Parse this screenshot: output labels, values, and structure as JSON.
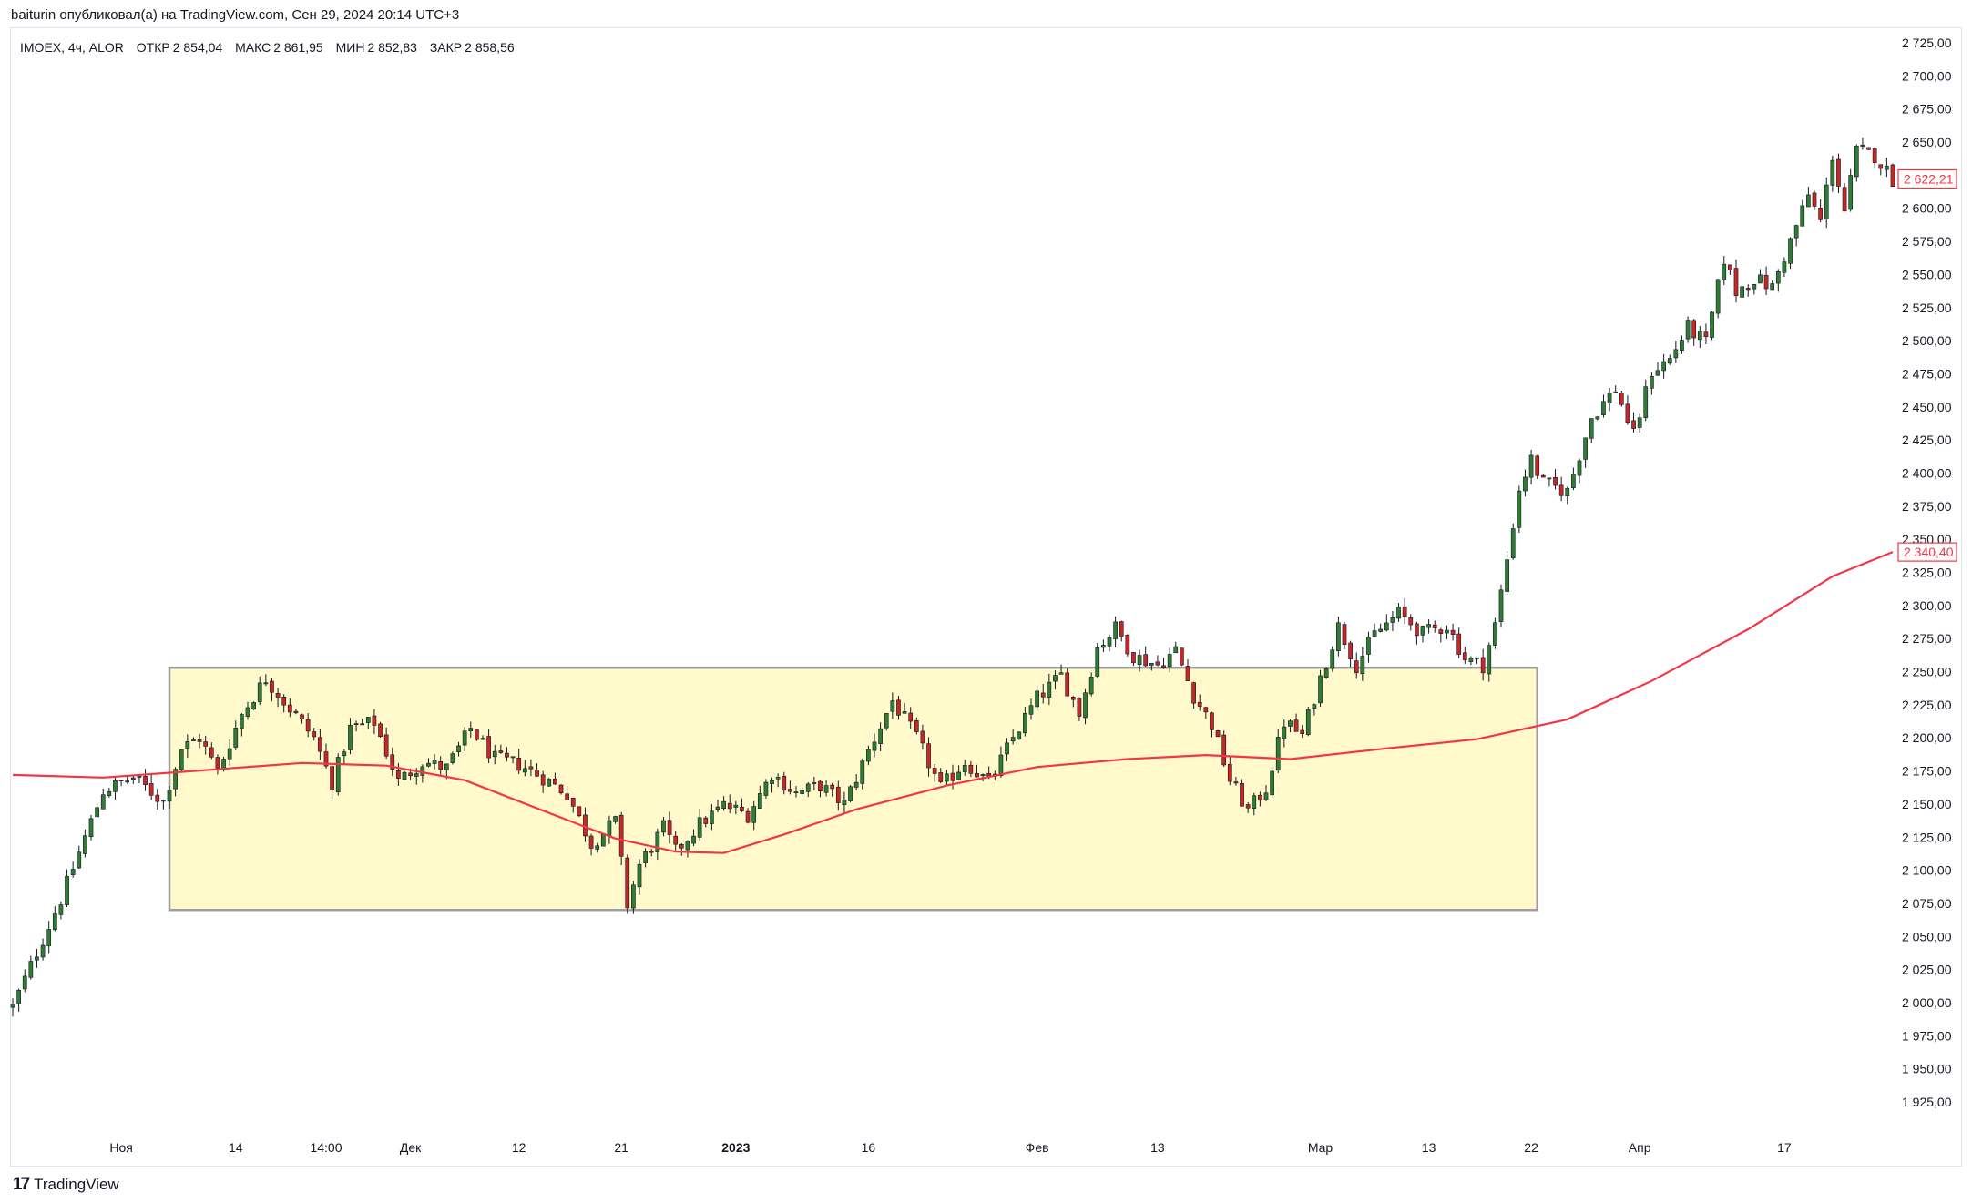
{
  "header": {
    "publish_text": "baiturin опубликовал(а) на TradingView.com, Сен 29, 2024 20:14 UTC+3"
  },
  "legend": {
    "symbol": "IMOEX, 4ч, ALOR",
    "open_label": "ОТКР",
    "open_value": "2 854,04",
    "high_label": "МАКС",
    "high_value": "2 861,95",
    "low_label": "МИН",
    "low_value": "2 852,83",
    "close_label": "ЗАКР",
    "close_value": "2 858,56"
  },
  "footer": {
    "brand": "TradingView",
    "logo_mark": "17"
  },
  "colors": {
    "up": "#26a69a",
    "up_body": "#2e7d32",
    "down": "#ef5350",
    "down_body": "#c62828",
    "ma": "#f23645",
    "range_fill": "#fff9cc",
    "range_border": "#9e9e9e",
    "grid_text": "#131722"
  },
  "chart_data": {
    "type": "candlestick",
    "title": "IMOEX, 4ч, ALOR",
    "ylim": [
      1900,
      2730
    ],
    "y_ticks": [
      1925,
      1950,
      1975,
      2000,
      2025,
      2050,
      2075,
      2100,
      2125,
      2150,
      2175,
      2200,
      2225,
      2250,
      2275,
      2300,
      2325,
      2350,
      2375,
      2400,
      2425,
      2450,
      2475,
      2500,
      2525,
      2550,
      2575,
      2600,
      2625,
      2650,
      2675,
      2700,
      2725
    ],
    "y_tick_labels": [
      "1 925,00",
      "1 950,00",
      "1 975,00",
      "2 000,00",
      "2 025,00",
      "2 050,00",
      "2 075,00",
      "2 100,00",
      "2 125,00",
      "2 150,00",
      "2 175,00",
      "2 200,00",
      "2 225,00",
      "2 250,00",
      "2 275,00",
      "2 300,00",
      "2 325,00",
      "2 350,00",
      "2 375,00",
      "2 400,00",
      "2 425,00",
      "2 450,00",
      "2 475,00",
      "2 500,00",
      "2 525,00",
      "2 550,00",
      "2 575,00",
      "2 600,00",
      "2 625,00",
      "2 650,00",
      "2 675,00",
      "2 700,00",
      "2 725,00"
    ],
    "x_ticks": [
      {
        "bar": 18,
        "label": "Ноя",
        "bold": false
      },
      {
        "bar": 37,
        "label": "14",
        "bold": false
      },
      {
        "bar": 52,
        "label": "14:00",
        "bold": false
      },
      {
        "bar": 66,
        "label": "Дек",
        "bold": false
      },
      {
        "bar": 84,
        "label": "12",
        "bold": false
      },
      {
        "bar": 101,
        "label": "21",
        "bold": false
      },
      {
        "bar": 120,
        "label": "2023",
        "bold": true
      },
      {
        "bar": 142,
        "label": "16",
        "bold": false
      },
      {
        "bar": 170,
        "label": "Фев",
        "bold": false
      },
      {
        "bar": 190,
        "label": "13",
        "bold": false
      },
      {
        "bar": 217,
        "label": "Мар",
        "bold": false
      },
      {
        "bar": 235,
        "label": "13",
        "bold": false
      },
      {
        "bar": 252,
        "label": "22",
        "bold": false
      },
      {
        "bar": 270,
        "label": "Апр",
        "bold": false
      },
      {
        "bar": 294,
        "label": "17",
        "bold": false
      }
    ],
    "price_labels": [
      {
        "name": "last-price",
        "value": 2622.21,
        "text": "2 622,21"
      },
      {
        "name": "ma-price",
        "value": 2340.4,
        "text": "2 340,40"
      }
    ],
    "range_box": {
      "price_top": 2253,
      "price_bottom": 2070,
      "bar_start": 26,
      "bar_end": 253
    },
    "ma_path": [
      {
        "bar": 0,
        "value": 2172
      },
      {
        "bar": 15,
        "value": 2170
      },
      {
        "bar": 30,
        "value": 2175
      },
      {
        "bar": 48,
        "value": 2181
      },
      {
        "bar": 62,
        "value": 2179
      },
      {
        "bar": 75,
        "value": 2168
      },
      {
        "bar": 88,
        "value": 2145
      },
      {
        "bar": 100,
        "value": 2124
      },
      {
        "bar": 110,
        "value": 2114
      },
      {
        "bar": 118,
        "value": 2113
      },
      {
        "bar": 128,
        "value": 2127
      },
      {
        "bar": 140,
        "value": 2146
      },
      {
        "bar": 155,
        "value": 2164
      },
      {
        "bar": 170,
        "value": 2178
      },
      {
        "bar": 185,
        "value": 2184
      },
      {
        "bar": 198,
        "value": 2187
      },
      {
        "bar": 212,
        "value": 2184
      },
      {
        "bar": 228,
        "value": 2192
      },
      {
        "bar": 243,
        "value": 2199
      },
      {
        "bar": 258,
        "value": 2214
      },
      {
        "bar": 272,
        "value": 2243
      },
      {
        "bar": 288,
        "value": 2282
      },
      {
        "bar": 302,
        "value": 2322
      },
      {
        "bar": 312,
        "value": 2340.4
      }
    ],
    "price_path": [
      {
        "bar": 0,
        "value": 1997
      },
      {
        "bar": 4,
        "value": 2038
      },
      {
        "bar": 8,
        "value": 2078
      },
      {
        "bar": 12,
        "value": 2125
      },
      {
        "bar": 15,
        "value": 2160
      },
      {
        "bar": 20,
        "value": 2170
      },
      {
        "bar": 25,
        "value": 2152
      },
      {
        "bar": 28,
        "value": 2192
      },
      {
        "bar": 31,
        "value": 2200
      },
      {
        "bar": 34,
        "value": 2175
      },
      {
        "bar": 38,
        "value": 2218
      },
      {
        "bar": 42,
        "value": 2245
      },
      {
        "bar": 46,
        "value": 2222
      },
      {
        "bar": 50,
        "value": 2200
      },
      {
        "bar": 53,
        "value": 2166
      },
      {
        "bar": 56,
        "value": 2207
      },
      {
        "bar": 60,
        "value": 2212
      },
      {
        "bar": 64,
        "value": 2167
      },
      {
        "bar": 68,
        "value": 2182
      },
      {
        "bar": 72,
        "value": 2177
      },
      {
        "bar": 76,
        "value": 2207
      },
      {
        "bar": 80,
        "value": 2184
      },
      {
        "bar": 84,
        "value": 2180
      },
      {
        "bar": 88,
        "value": 2170
      },
      {
        "bar": 92,
        "value": 2158
      },
      {
        "bar": 96,
        "value": 2120
      },
      {
        "bar": 100,
        "value": 2137
      },
      {
        "bar": 102,
        "value": 2074
      },
      {
        "bar": 104,
        "value": 2104
      },
      {
        "bar": 108,
        "value": 2132
      },
      {
        "bar": 110,
        "value": 2114
      },
      {
        "bar": 114,
        "value": 2135
      },
      {
        "bar": 118,
        "value": 2149
      },
      {
        "bar": 122,
        "value": 2142
      },
      {
        "bar": 126,
        "value": 2173
      },
      {
        "bar": 130,
        "value": 2158
      },
      {
        "bar": 134,
        "value": 2164
      },
      {
        "bar": 138,
        "value": 2150
      },
      {
        "bar": 142,
        "value": 2190
      },
      {
        "bar": 146,
        "value": 2228
      },
      {
        "bar": 150,
        "value": 2200
      },
      {
        "bar": 154,
        "value": 2162
      },
      {
        "bar": 158,
        "value": 2182
      },
      {
        "bar": 162,
        "value": 2166
      },
      {
        "bar": 166,
        "value": 2200
      },
      {
        "bar": 170,
        "value": 2230
      },
      {
        "bar": 174,
        "value": 2247
      },
      {
        "bar": 177,
        "value": 2219
      },
      {
        "bar": 180,
        "value": 2268
      },
      {
        "bar": 183,
        "value": 2283
      },
      {
        "bar": 186,
        "value": 2262
      },
      {
        "bar": 190,
        "value": 2255
      },
      {
        "bar": 193,
        "value": 2266
      },
      {
        "bar": 196,
        "value": 2232
      },
      {
        "bar": 199,
        "value": 2210
      },
      {
        "bar": 202,
        "value": 2168
      },
      {
        "bar": 205,
        "value": 2145
      },
      {
        "bar": 208,
        "value": 2162
      },
      {
        "bar": 211,
        "value": 2212
      },
      {
        "bar": 214,
        "value": 2202
      },
      {
        "bar": 217,
        "value": 2245
      },
      {
        "bar": 220,
        "value": 2284
      },
      {
        "bar": 223,
        "value": 2255
      },
      {
        "bar": 226,
        "value": 2278
      },
      {
        "bar": 230,
        "value": 2294
      },
      {
        "bar": 234,
        "value": 2279
      },
      {
        "bar": 238,
        "value": 2285
      },
      {
        "bar": 241,
        "value": 2260
      },
      {
        "bar": 244,
        "value": 2255
      },
      {
        "bar": 246,
        "value": 2285
      },
      {
        "bar": 248,
        "value": 2335
      },
      {
        "bar": 250,
        "value": 2388
      },
      {
        "bar": 252,
        "value": 2410
      },
      {
        "bar": 254,
        "value": 2392
      },
      {
        "bar": 258,
        "value": 2386
      },
      {
        "bar": 262,
        "value": 2442
      },
      {
        "bar": 266,
        "value": 2464
      },
      {
        "bar": 269,
        "value": 2428
      },
      {
        "bar": 272,
        "value": 2477
      },
      {
        "bar": 275,
        "value": 2486
      },
      {
        "bar": 278,
        "value": 2510
      },
      {
        "bar": 281,
        "value": 2498
      },
      {
        "bar": 284,
        "value": 2562
      },
      {
        "bar": 286,
        "value": 2537
      },
      {
        "bar": 289,
        "value": 2547
      },
      {
        "bar": 292,
        "value": 2540
      },
      {
        "bar": 295,
        "value": 2575
      },
      {
        "bar": 298,
        "value": 2610
      },
      {
        "bar": 300,
        "value": 2590
      },
      {
        "bar": 302,
        "value": 2640
      },
      {
        "bar": 304,
        "value": 2598
      },
      {
        "bar": 306,
        "value": 2643
      },
      {
        "bar": 309,
        "value": 2640
      },
      {
        "bar": 312,
        "value": 2622
      }
    ],
    "candle_count": 313
  }
}
